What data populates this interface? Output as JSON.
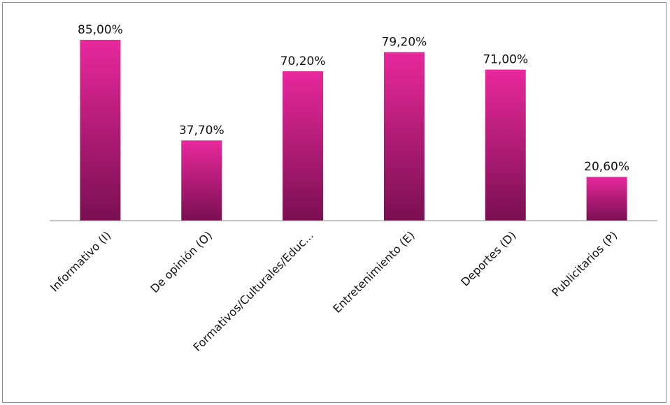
{
  "chart_data": {
    "type": "bar",
    "categories": [
      "Informativo (I)",
      "De opinión (O)",
      "Formativos/Culturales/Educ...",
      "Entretenimiento (E)",
      "Deportes (D)",
      "Publicitarios (P)"
    ],
    "values": [
      85.0,
      37.7,
      70.2,
      79.2,
      71.0,
      20.6
    ],
    "data_labels": [
      "85,00%",
      "37,70%",
      "70,20%",
      "79,20%",
      "71,00%",
      "20,60%"
    ],
    "ylim": [
      0,
      85
    ],
    "grid": false,
    "legend": "none",
    "title": "",
    "xlabel": "",
    "ylabel": ""
  },
  "colors": {
    "bar_top": "#e8289c",
    "bar_bottom": "#7a0f52",
    "axis": "#8c8c8c"
  }
}
